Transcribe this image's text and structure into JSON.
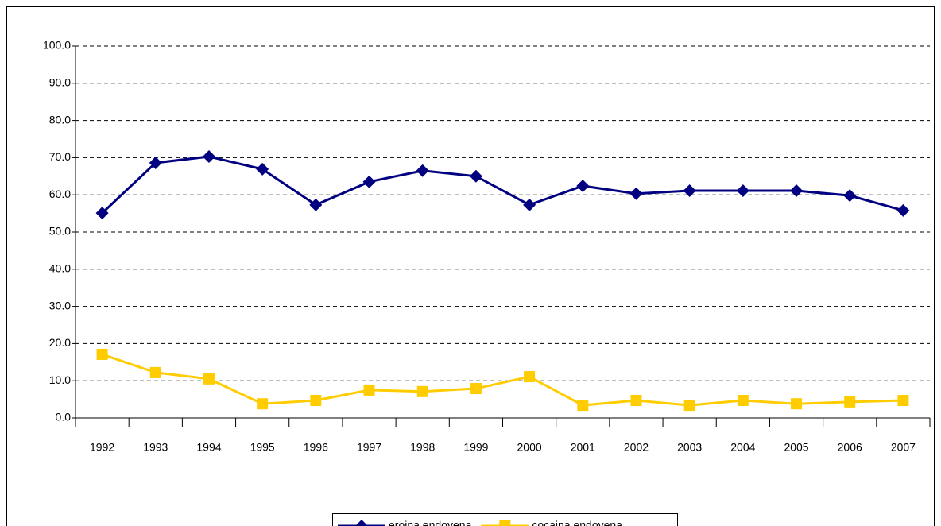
{
  "chart_data": {
    "type": "line",
    "categories": [
      "1992",
      "1993",
      "1994",
      "1995",
      "1996",
      "1997",
      "1998",
      "1999",
      "2000",
      "2001",
      "2002",
      "2003",
      "2004",
      "2005",
      "2006",
      "2007"
    ],
    "series": [
      {
        "name": "eroina endovena",
        "color": "#000080",
        "marker": "diamond",
        "values": [
          55.1,
          68.6,
          70.3,
          66.9,
          57.3,
          63.5,
          66.5,
          65.0,
          57.3,
          62.4,
          60.3,
          61.1,
          61.1,
          61.1,
          59.8,
          55.8
        ]
      },
      {
        "name": "cocaina endovena",
        "color": "#ffcc00",
        "marker": "square",
        "values": [
          17.1,
          12.2,
          10.5,
          3.8,
          4.7,
          7.5,
          7.1,
          7.9,
          11.1,
          3.4,
          4.7,
          3.4,
          4.7,
          3.8,
          4.3,
          4.7
        ]
      }
    ],
    "ylim": [
      0,
      100
    ],
    "yticks": [
      {
        "value": 0,
        "label": "0.0"
      },
      {
        "value": 10,
        "label": "10.0"
      },
      {
        "value": 20,
        "label": "20.0"
      },
      {
        "value": 30,
        "label": "30.0"
      },
      {
        "value": 40,
        "label": "40.0"
      },
      {
        "value": 50,
        "label": "50.0"
      },
      {
        "value": 60,
        "label": "60.0"
      },
      {
        "value": 70,
        "label": "70.0"
      },
      {
        "value": 80,
        "label": "80.0"
      },
      {
        "value": 90,
        "label": "90.0"
      },
      {
        "value": 100,
        "label": "100.0"
      }
    ],
    "grid": true,
    "legend": "bottom"
  }
}
